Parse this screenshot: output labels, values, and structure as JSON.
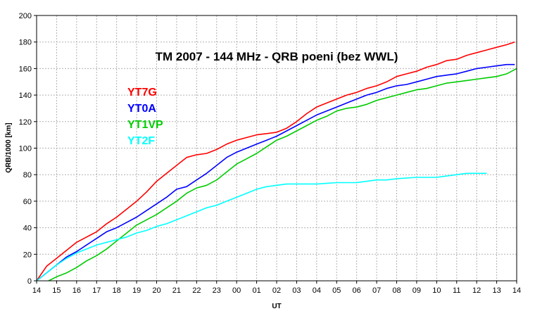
{
  "chart_data": {
    "type": "line",
    "title": "TM 2007 - 144 MHz - QRB poeni (bez WWL)",
    "xlabel": "UT",
    "ylabel": "QRB/1000 [km]",
    "ylim": [
      0,
      200
    ],
    "yticks": [
      0,
      20,
      40,
      60,
      80,
      100,
      120,
      140,
      160,
      180,
      200
    ],
    "xticks": [
      "14",
      "15",
      "16",
      "17",
      "18",
      "19",
      "20",
      "21",
      "22",
      "23",
      "00",
      "01",
      "02",
      "03",
      "04",
      "05",
      "06",
      "07",
      "08",
      "09",
      "10",
      "11",
      "12",
      "13",
      "14"
    ],
    "x_unit": "hours since 14 UT",
    "grid": true,
    "legend_position": "top-left",
    "series": [
      {
        "name": "YT7G",
        "color": "#ff0000",
        "x": [
          0,
          0.5,
          1,
          1.5,
          2,
          2.5,
          3,
          3.5,
          4,
          4.5,
          5,
          5.5,
          6,
          6.5,
          7,
          7.5,
          8,
          8.5,
          9,
          9.5,
          10,
          10.5,
          11,
          11.5,
          12,
          12.5,
          13,
          13.5,
          14,
          14.5,
          15,
          15.5,
          16,
          16.5,
          17,
          17.5,
          18,
          18.5,
          19,
          19.5,
          20,
          20.5,
          21,
          21.5,
          22,
          22.5,
          23,
          23.5,
          23.9
        ],
        "y": [
          0,
          11,
          17,
          23,
          29,
          33,
          37,
          43,
          48,
          54,
          60,
          67,
          75,
          81,
          87,
          93,
          95,
          96,
          99,
          103,
          106,
          108,
          110,
          111,
          112,
          115,
          120,
          126,
          131,
          134,
          137,
          140,
          142,
          145,
          147,
          150,
          154,
          156,
          158,
          161,
          163,
          166,
          167,
          170,
          172,
          174,
          176,
          178,
          180
        ]
      },
      {
        "name": "YT0A",
        "color": "#0000ff",
        "x": [
          0,
          0.5,
          1,
          1.5,
          2,
          2.5,
          3,
          3.5,
          4,
          4.5,
          5,
          5.5,
          6,
          6.5,
          7,
          7.5,
          8,
          8.5,
          9,
          9.5,
          10,
          10.5,
          11,
          11.5,
          12,
          12.5,
          13,
          13.5,
          14,
          14.5,
          15,
          15.5,
          16,
          16.5,
          17,
          17.5,
          18,
          18.5,
          19,
          19.5,
          20,
          20.5,
          21,
          21.5,
          22,
          22.5,
          23,
          23.5,
          23.9
        ],
        "y": [
          0,
          6,
          12,
          18,
          22,
          27,
          32,
          37,
          40,
          44,
          48,
          53,
          58,
          63,
          69,
          71,
          76,
          81,
          87,
          93,
          97,
          100,
          103,
          106,
          109,
          113,
          117,
          121,
          125,
          128,
          131,
          134,
          137,
          140,
          142,
          145,
          147,
          148,
          150,
          152,
          154,
          155,
          156,
          158,
          160,
          161,
          162,
          163,
          163
        ]
      },
      {
        "name": "YT1VP",
        "color": "#00cc00",
        "x": [
          0.6,
          1,
          1.5,
          2,
          2.5,
          3,
          3.5,
          4,
          4.5,
          5,
          5.5,
          6,
          6.5,
          7,
          7.5,
          8,
          8.5,
          9,
          9.5,
          10,
          10.5,
          11,
          11.5,
          12,
          12.5,
          13,
          13.5,
          14,
          14.5,
          15,
          15.5,
          16,
          16.5,
          17,
          17.5,
          18,
          18.5,
          19,
          19.5,
          20,
          20.5,
          21,
          21.5,
          22,
          22.5,
          23,
          23.5,
          24
        ],
        "y": [
          0,
          3,
          6,
          10,
          15,
          19,
          24,
          30,
          36,
          42,
          46,
          50,
          55,
          60,
          66,
          70,
          72,
          76,
          82,
          88,
          92,
          96,
          101,
          106,
          109,
          113,
          117,
          121,
          124,
          128,
          130,
          131,
          133,
          136,
          138,
          140,
          142,
          144,
          145,
          147,
          149,
          150,
          151,
          152,
          153,
          154,
          156,
          160
        ]
      },
      {
        "name": "YT2F",
        "color": "#00ffff",
        "x": [
          0,
          0.5,
          1,
          1.5,
          2,
          2.5,
          3,
          3.5,
          4,
          4.5,
          5,
          5.5,
          6,
          6.5,
          7,
          7.5,
          8,
          8.5,
          9,
          9.5,
          10,
          10.5,
          11,
          11.5,
          12,
          12.5,
          13,
          14,
          15,
          16,
          17,
          17.5,
          18,
          19,
          20,
          20.5,
          21,
          21.5,
          22,
          22.5
        ],
        "y": [
          0,
          6,
          12,
          17,
          21,
          24,
          27,
          29,
          31,
          33,
          36,
          38,
          41,
          43,
          46,
          49,
          52,
          55,
          57,
          60,
          63,
          66,
          69,
          71,
          72,
          73,
          73,
          73,
          74,
          74,
          76,
          76,
          77,
          78,
          78,
          79,
          80,
          81,
          81,
          81
        ]
      }
    ]
  }
}
